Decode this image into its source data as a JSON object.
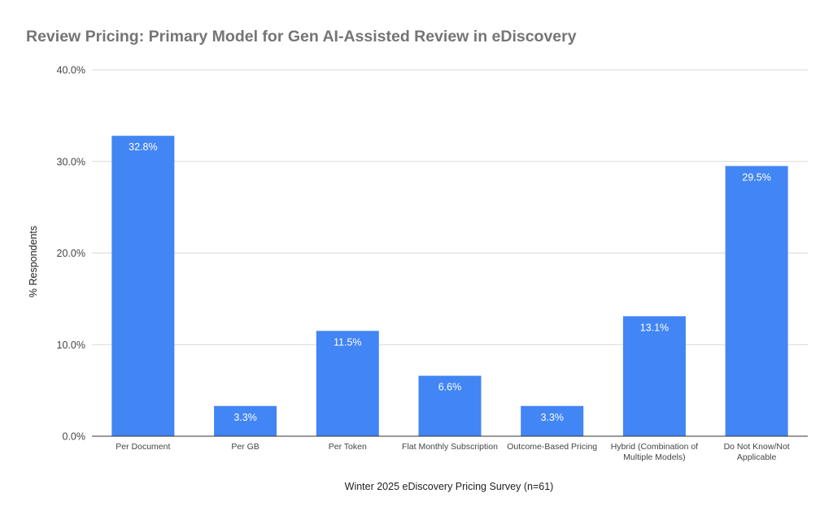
{
  "chart_data": {
    "type": "bar",
    "title": "Review Pricing: Primary Model for Gen AI-Assisted Review in eDiscovery",
    "xlabel": "Winter 2025 eDiscovery Pricing Survey (n=61)",
    "ylabel": "% Respondents",
    "categories": [
      [
        "Per Document"
      ],
      [
        "Per GB"
      ],
      [
        "Per Token"
      ],
      [
        "Flat Monthly Subscription"
      ],
      [
        "Outcome-Based Pricing"
      ],
      [
        "Hybrid (Combination of",
        "Multiple Models)"
      ],
      [
        "Do Not Know/Not",
        "Applicable"
      ]
    ],
    "values": [
      32.8,
      3.3,
      11.5,
      6.6,
      3.3,
      13.1,
      29.5
    ],
    "data_labels": [
      "32.8%",
      "3.3%",
      "11.5%",
      "6.6%",
      "3.3%",
      "13.1%",
      "29.5%"
    ],
    "yticks": [
      0,
      10,
      20,
      30,
      40
    ],
    "ytick_labels": [
      "0.0%",
      "10.0%",
      "20.0%",
      "30.0%",
      "40.0%"
    ],
    "ylim": [
      0,
      40
    ],
    "grid": true,
    "legend": "none",
    "colors": {
      "bar": "#4285f4",
      "title": "#757575",
      "grid": "#d9d9d9",
      "axis": "#333333"
    }
  }
}
